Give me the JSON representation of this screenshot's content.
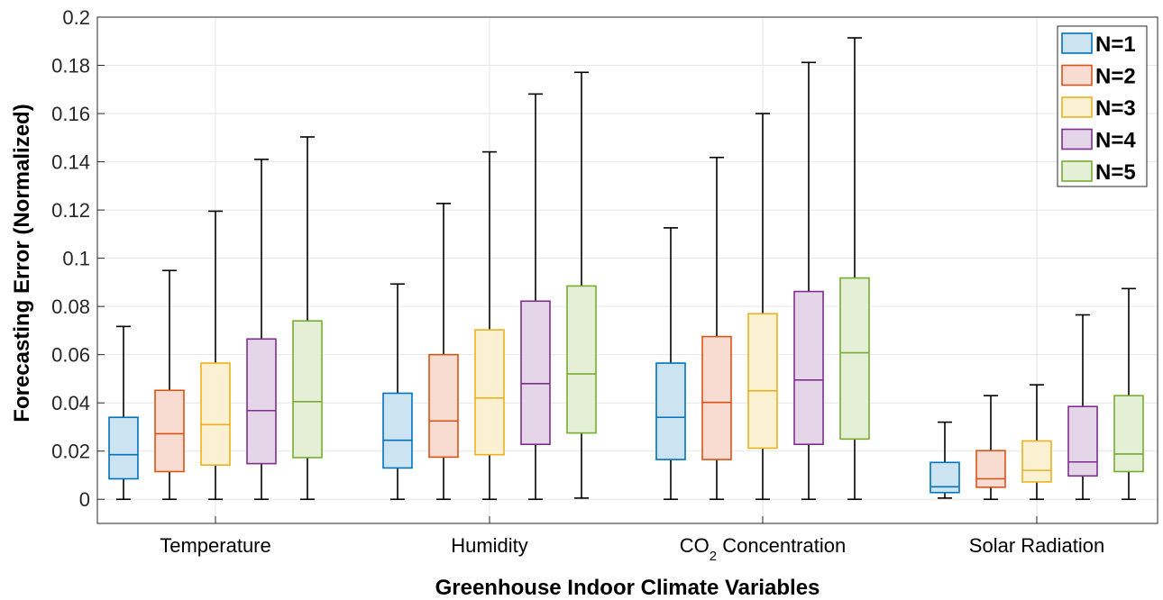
{
  "chart_data": {
    "type": "boxplot",
    "xlabel": "Greenhouse Indoor Climate Variables",
    "ylabel": "Forecasting Error (Normalized)",
    "ylim": [
      -0.01,
      0.2
    ],
    "yticks": [
      0,
      0.02,
      0.04,
      0.06,
      0.08,
      0.1,
      0.12,
      0.14,
      0.16,
      0.18,
      0.2
    ],
    "ytick_labels": [
      "0",
      "0.02",
      "0.04",
      "0.06",
      "0.08",
      "0.1",
      "0.12",
      "0.14",
      "0.16",
      "0.18",
      "0.2"
    ],
    "categories": [
      {
        "label": "Temperature"
      },
      {
        "label": "Humidity"
      },
      {
        "label": "CO",
        "sub": "2",
        "suffix": " Concentration"
      },
      {
        "label": "Solar Radiation"
      }
    ],
    "grid": true,
    "legend_position": "top-right",
    "series": [
      {
        "name": "N=1",
        "edge": "#0072BD",
        "fill": "#CCE3F2",
        "boxes": [
          {
            "min": 0,
            "q1": 0.0085,
            "median": 0.0185,
            "q3": 0.034,
            "max": 0.0717
          },
          {
            "min": 0,
            "q1": 0.013,
            "median": 0.0245,
            "q3": 0.044,
            "max": 0.0893
          },
          {
            "min": 0,
            "q1": 0.0165,
            "median": 0.034,
            "q3": 0.0565,
            "max": 0.1126
          },
          {
            "min": 0.0005,
            "q1": 0.0028,
            "median": 0.0052,
            "q3": 0.0153,
            "max": 0.032
          }
        ]
      },
      {
        "name": "N=2",
        "edge": "#D95319",
        "fill": "#F8DCD1",
        "boxes": [
          {
            "min": 0,
            "q1": 0.0115,
            "median": 0.0272,
            "q3": 0.0452,
            "max": 0.0949
          },
          {
            "min": 0,
            "q1": 0.0175,
            "median": 0.0325,
            "q3": 0.06,
            "max": 0.1227
          },
          {
            "min": 0,
            "q1": 0.0165,
            "median": 0.0402,
            "q3": 0.0675,
            "max": 0.1418
          },
          {
            "min": 0,
            "q1": 0.005,
            "median": 0.0085,
            "q3": 0.0202,
            "max": 0.043
          }
        ]
      },
      {
        "name": "N=3",
        "edge": "#EDB120",
        "fill": "#FBF0D2",
        "boxes": [
          {
            "min": 0,
            "q1": 0.0142,
            "median": 0.031,
            "q3": 0.0565,
            "max": 0.1195
          },
          {
            "min": 0,
            "q1": 0.0185,
            "median": 0.042,
            "q3": 0.0703,
            "max": 0.1441
          },
          {
            "min": 0,
            "q1": 0.0212,
            "median": 0.045,
            "q3": 0.077,
            "max": 0.16
          },
          {
            "min": 0,
            "q1": 0.0072,
            "median": 0.012,
            "q3": 0.0242,
            "max": 0.0475
          }
        ]
      },
      {
        "name": "N=4",
        "edge": "#7E2F8E",
        "fill": "#E5D5E8",
        "boxes": [
          {
            "min": 0,
            "q1": 0.0148,
            "median": 0.0368,
            "q3": 0.0665,
            "max": 0.141
          },
          {
            "min": 0,
            "q1": 0.0228,
            "median": 0.048,
            "q3": 0.0822,
            "max": 0.1681
          },
          {
            "min": 0,
            "q1": 0.0228,
            "median": 0.0495,
            "q3": 0.0862,
            "max": 0.1812
          },
          {
            "min": 0,
            "q1": 0.0097,
            "median": 0.0155,
            "q3": 0.0385,
            "max": 0.0765
          }
        ]
      },
      {
        "name": "N=5",
        "edge": "#77AC30",
        "fill": "#E4EFD6",
        "boxes": [
          {
            "min": 0,
            "q1": 0.0173,
            "median": 0.0405,
            "q3": 0.074,
            "max": 0.1503
          },
          {
            "min": 0.0005,
            "q1": 0.0275,
            "median": 0.052,
            "q3": 0.0885,
            "max": 0.1771
          },
          {
            "min": 0,
            "q1": 0.025,
            "median": 0.0608,
            "q3": 0.0918,
            "max": 0.1914
          },
          {
            "min": 0,
            "q1": 0.0115,
            "median": 0.0188,
            "q3": 0.043,
            "max": 0.0874
          }
        ]
      }
    ]
  }
}
